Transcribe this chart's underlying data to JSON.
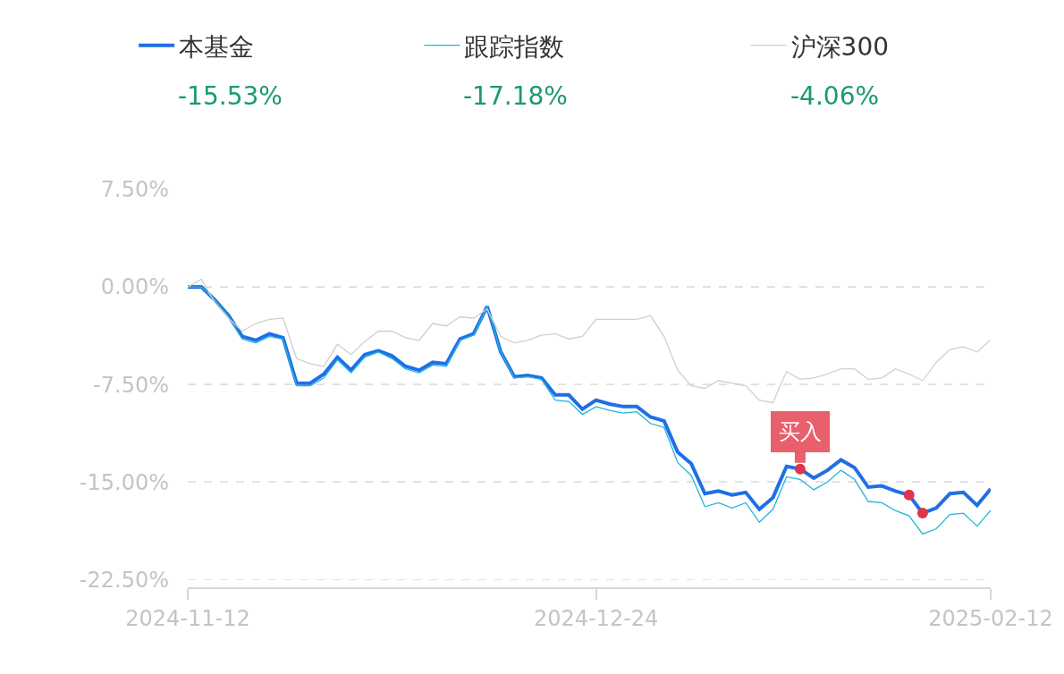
{
  "chart_data": {
    "type": "line",
    "categories": [
      "2024-11-12",
      null,
      null,
      null,
      null,
      null,
      null,
      null,
      null,
      null,
      null,
      null,
      null,
      null,
      null,
      null,
      null,
      null,
      null,
      null,
      null,
      null,
      null,
      null,
      null,
      null,
      null,
      null,
      null,
      null,
      "2024-12-24",
      null,
      null,
      null,
      null,
      null,
      null,
      null,
      null,
      null,
      null,
      null,
      null,
      null,
      null,
      null,
      null,
      null,
      null,
      null,
      null,
      null,
      null,
      null,
      null,
      null,
      null,
      null,
      null,
      "2025-02-12"
    ],
    "series": [
      {
        "name": "本基金",
        "color": "#1f6fe5",
        "values": [
          0,
          0,
          -1.0,
          -2.2,
          -3.8,
          -4.1,
          -3.6,
          -3.9,
          -7.4,
          -7.4,
          -6.7,
          -5.4,
          -6.4,
          -5.2,
          -4.9,
          -5.3,
          -6.1,
          -6.4,
          -5.8,
          -5.9,
          -4.0,
          -3.6,
          -1.5,
          -5.0,
          -6.9,
          -6.8,
          -7.0,
          -8.3,
          -8.3,
          -9.4,
          -8.7,
          -9.0,
          -9.2,
          -9.2,
          -10.0,
          -10.3,
          -12.7,
          -13.6,
          -15.9,
          -15.7,
          -16.0,
          -15.8,
          -17.1,
          -16.2,
          -13.8,
          -14.0,
          -14.7,
          -14.1,
          -13.3,
          -13.9,
          -15.4,
          -15.3,
          -15.7,
          -16.0,
          -17.4,
          -17.0,
          -15.9,
          -15.8,
          -16.8,
          -15.53
        ]
      },
      {
        "name": "跟踪指数",
        "color": "#22b4dc",
        "values": [
          0,
          0,
          -1.0,
          -2.3,
          -4.0,
          -4.3,
          -3.8,
          -4.0,
          -7.6,
          -7.6,
          -7.0,
          -5.6,
          -6.6,
          -5.4,
          -5.0,
          -5.5,
          -6.3,
          -6.6,
          -6.0,
          -6.1,
          -4.1,
          -3.7,
          -1.5,
          -5.0,
          -7.0,
          -6.9,
          -7.1,
          -8.7,
          -8.8,
          -9.8,
          -9.2,
          -9.5,
          -9.7,
          -9.6,
          -10.5,
          -10.8,
          -13.5,
          -14.5,
          -16.9,
          -16.6,
          -17.0,
          -16.6,
          -18.1,
          -17.1,
          -14.6,
          -14.8,
          -15.6,
          -15.0,
          -14.1,
          -14.8,
          -16.5,
          -16.6,
          -17.2,
          -17.6,
          -19.0,
          -18.6,
          -17.5,
          -17.4,
          -18.4,
          -17.18
        ]
      },
      {
        "name": "沪深300",
        "color": "#cfcfcf",
        "values": [
          0,
          0.6,
          -1.2,
          -2.4,
          -3.4,
          -2.8,
          -2.5,
          -2.4,
          -5.5,
          -5.9,
          -6.1,
          -4.4,
          -5.2,
          -4.2,
          -3.4,
          -3.4,
          -3.9,
          -4.1,
          -2.8,
          -3.0,
          -2.3,
          -2.4,
          -1.7,
          -3.8,
          -4.3,
          -4.1,
          -3.7,
          -3.6,
          -4.0,
          -3.8,
          -2.5,
          -2.5,
          -2.5,
          -2.5,
          -2.2,
          -3.8,
          -6.4,
          -7.6,
          -7.8,
          -7.2,
          -7.4,
          -7.6,
          -8.7,
          -8.9,
          -6.5,
          -7.1,
          -7.0,
          -6.7,
          -6.3,
          -6.3,
          -7.1,
          -7.0,
          -6.3,
          -6.7,
          -7.2,
          -5.8,
          -4.8,
          -4.6,
          -5.0,
          -4.06
        ]
      },
      {
        "type": "scatter",
        "color": "#e0344a",
        "marker": "circle",
        "values": [
          null,
          null,
          null,
          null,
          null,
          null,
          null,
          null,
          null,
          null,
          null,
          null,
          null,
          null,
          null,
          null,
          null,
          null,
          null,
          null,
          null,
          null,
          null,
          null,
          null,
          null,
          null,
          null,
          null,
          null,
          null,
          null,
          null,
          null,
          null,
          null,
          null,
          null,
          null,
          null,
          null,
          null,
          null,
          null,
          null,
          -14.0,
          null,
          null,
          null,
          null,
          null,
          null,
          null,
          -16.0,
          -17.4,
          null,
          null,
          null,
          null,
          null
        ]
      }
    ],
    "ylim": [
      -23.1,
      7.5
    ],
    "yticks": [
      {
        "value": 7.5,
        "label": "7.50%"
      },
      {
        "value": 0,
        "label": "0.00%"
      },
      {
        "value": -7.5,
        "label": "-7.50%"
      },
      {
        "value": -15,
        "label": "-15.00%"
      },
      {
        "value": -22.5,
        "label": "-22.50%"
      }
    ],
    "grid": "y",
    "legend": "top",
    "marker": "none",
    "annotations": [
      {
        "text": "买入",
        "y": -14.0
      },
      "-15.53%",
      "-17.18%",
      "-4.06%"
    ]
  }
}
